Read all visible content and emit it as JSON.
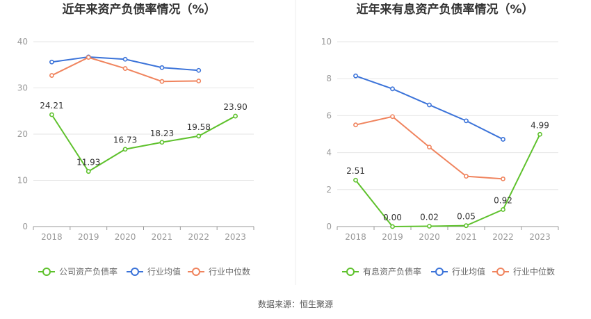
{
  "source_label": "数据来源：恒生聚源",
  "colors": {
    "company": "#5ec12c",
    "avg": "#3b73d9",
    "median": "#f0845e",
    "grid": "#e6e6e6",
    "axis": "#999999"
  },
  "chart_data": [
    {
      "type": "line",
      "title": "近年来资产负债率情况（%）",
      "x": [
        "2018",
        "2019",
        "2020",
        "2021",
        "2022",
        "2023"
      ],
      "ylim": [
        0,
        40
      ],
      "yticks": [
        "0",
        "10",
        "20",
        "30",
        "40"
      ],
      "grid": true,
      "legend_position": "bottom",
      "series": [
        {
          "name": "公司资产负债率",
          "color": "#5ec12c",
          "values": [
            24.21,
            11.93,
            16.73,
            18.23,
            19.58,
            23.9
          ],
          "labels": [
            "24.21",
            "11.93",
            "16.73",
            "18.23",
            "19.58",
            "23.90"
          ]
        },
        {
          "name": "行业均值",
          "color": "#3b73d9",
          "values": [
            35.6,
            36.7,
            36.2,
            34.4,
            33.8,
            null
          ]
        },
        {
          "name": "行业中位数",
          "color": "#f0845e",
          "values": [
            32.7,
            36.6,
            34.2,
            31.4,
            31.5,
            null
          ]
        }
      ]
    },
    {
      "type": "line",
      "title": "近年来有息资产负债率情况（%）",
      "x": [
        "2018",
        "2019",
        "2020",
        "2021",
        "2022",
        "2023"
      ],
      "ylim": [
        0,
        10
      ],
      "yticks": [
        "0",
        "2",
        "4",
        "6",
        "8",
        "10"
      ],
      "grid": true,
      "legend_position": "bottom",
      "series": [
        {
          "name": "有息资产负债率",
          "color": "#5ec12c",
          "values": [
            2.51,
            0.0,
            0.02,
            0.05,
            0.92,
            4.99
          ],
          "labels": [
            "2.51",
            "0.00",
            "0.02",
            "0.05",
            "0.92",
            "4.99"
          ]
        },
        {
          "name": "行业均值",
          "color": "#3b73d9",
          "values": [
            8.15,
            7.45,
            6.58,
            5.72,
            4.72,
            null
          ]
        },
        {
          "name": "行业中位数",
          "color": "#f0845e",
          "values": [
            5.5,
            5.95,
            4.3,
            2.72,
            2.58,
            null
          ]
        }
      ]
    }
  ]
}
